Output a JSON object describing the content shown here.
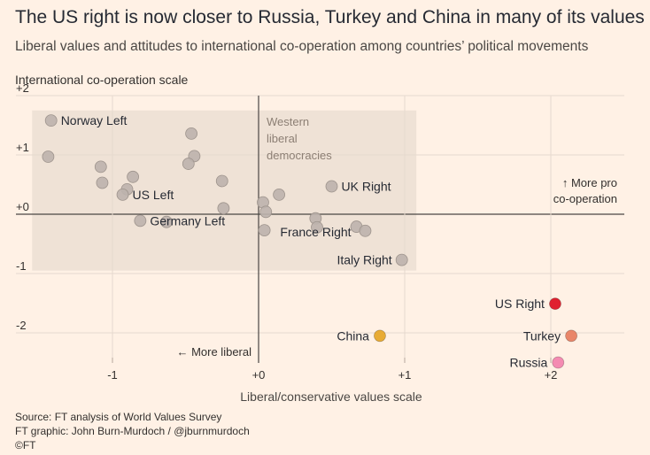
{
  "header": {
    "title": "The US right is now closer to Russia, Turkey and China in many of its values",
    "subtitle": "Liberal values and attitudes to international co-operation among countries’ political movements"
  },
  "footer": {
    "source": "Source: FT analysis of World Values Survey",
    "graphic": "FT graphic: John Burn-Murdoch / @jburnmurdoch",
    "copyright": "©FT"
  },
  "chart_data": {
    "type": "scatter",
    "title": "The US right is now closer to Russia, Turkey and China in many of its values",
    "subtitle": "Liberal values and attitudes to international co-operation among countries’ political movements",
    "xlabel": "Liberal/conservative values scale",
    "ylabel": "International co-operation scale",
    "xlim": [
      -1.6,
      2.5
    ],
    "ylim": [
      -2.5,
      2
    ],
    "x_ticks": [
      {
        "value": -1,
        "label": "-1"
      },
      {
        "value": 0,
        "label": "+0"
      },
      {
        "value": 1,
        "label": "+1"
      },
      {
        "value": 2,
        "label": "+2"
      }
    ],
    "y_ticks": [
      {
        "value": 2,
        "label": "+2"
      },
      {
        "value": 1,
        "label": "+1"
      },
      {
        "value": 0,
        "label": "+0"
      },
      {
        "value": -1,
        "label": "-1"
      },
      {
        "value": -2,
        "label": "-2"
      }
    ],
    "grid": true,
    "region": {
      "label": "Western liberal democracies",
      "x": [
        -1.55,
        1.08
      ],
      "y": [
        -0.95,
        1.75
      ],
      "lines": [
        "Western",
        "liberal",
        "democracies"
      ]
    },
    "annotations": {
      "more_liberal": "← More liberal",
      "more_pro_line1": "↑ More pro",
      "more_pro_line2": "co-operation"
    },
    "colors": {
      "grey": "#bcb3ad",
      "us_right": "#e0202f",
      "turkey": "#e98669",
      "russia": "#f48bb2",
      "china": "#e8ab34",
      "region": "#efe2d6"
    },
    "points": [
      {
        "x": -1.42,
        "y": 1.58,
        "label": "Norway Left"
      },
      {
        "x": -1.44,
        "y": 0.97,
        "label": ""
      },
      {
        "x": -1.08,
        "y": 0.8,
        "label": ""
      },
      {
        "x": -1.07,
        "y": 0.53,
        "label": ""
      },
      {
        "x": -0.86,
        "y": 0.63,
        "label": ""
      },
      {
        "x": -0.9,
        "y": 0.42,
        "label": ""
      },
      {
        "x": -0.93,
        "y": 0.33,
        "label": "US Left"
      },
      {
        "x": -0.81,
        "y": -0.11,
        "label": "Germany Left"
      },
      {
        "x": -0.63,
        "y": -0.13,
        "label": ""
      },
      {
        "x": -0.46,
        "y": 1.36,
        "label": ""
      },
      {
        "x": -0.44,
        "y": 0.98,
        "label": ""
      },
      {
        "x": -0.48,
        "y": 0.85,
        "label": ""
      },
      {
        "x": -0.25,
        "y": 0.56,
        "label": ""
      },
      {
        "x": -0.24,
        "y": 0.1,
        "label": ""
      },
      {
        "x": 0.03,
        "y": 0.2,
        "label": ""
      },
      {
        "x": 0.05,
        "y": 0.04,
        "label": ""
      },
      {
        "x": 0.04,
        "y": -0.27,
        "label": ""
      },
      {
        "x": 0.14,
        "y": 0.33,
        "label": ""
      },
      {
        "x": 0.5,
        "y": 0.47,
        "label": "UK Right"
      },
      {
        "x": 0.39,
        "y": -0.07,
        "label": ""
      },
      {
        "x": 0.4,
        "y": -0.22,
        "label": ""
      },
      {
        "x": 0.67,
        "y": -0.21,
        "label": "France Right"
      },
      {
        "x": 0.73,
        "y": -0.28,
        "label": ""
      },
      {
        "x": 0.98,
        "y": -0.77,
        "label": "Italy Right"
      },
      {
        "x": 2.03,
        "y": -1.51,
        "label": "US Right",
        "color": "#e0202f"
      },
      {
        "x": 0.83,
        "y": -2.05,
        "label": "China",
        "color": "#e8ab34"
      },
      {
        "x": 2.14,
        "y": -2.05,
        "label": "Turkey",
        "color": "#e98669"
      },
      {
        "x": 2.05,
        "y": -2.5,
        "label": "Russia",
        "color": "#f48bb2"
      }
    ]
  }
}
